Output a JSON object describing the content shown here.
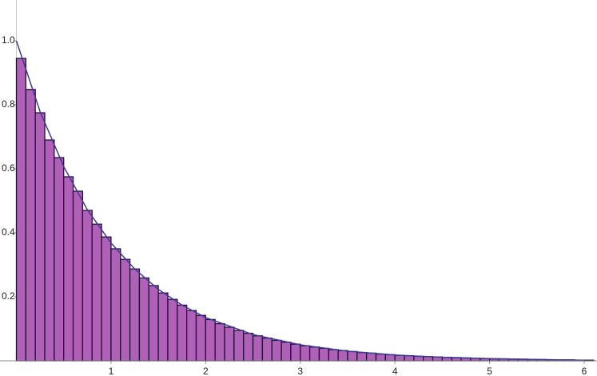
{
  "chart_data": {
    "type": "histogram",
    "bins": [
      0,
      0.1,
      0.2,
      0.3,
      0.4,
      0.5,
      0.6,
      0.7,
      0.8,
      0.9,
      1,
      1.1,
      1.2,
      1.3,
      1.4,
      1.5,
      1.6,
      1.7,
      1.8,
      1.9,
      2,
      2.1,
      2.2,
      2.3,
      2.4,
      2.5,
      2.6,
      2.7,
      2.8,
      2.9,
      3,
      3.1,
      3.2,
      3.3,
      3.4,
      3.5,
      3.6,
      3.7,
      3.8,
      3.9,
      4,
      4.1,
      4.2,
      4.3,
      4.4,
      4.5,
      4.6,
      4.7,
      4.8,
      4.9,
      5,
      5.1,
      5.2,
      5.3,
      5.4,
      5.5,
      5.6,
      5.7,
      5.8,
      5.9,
      6,
      6.1
    ],
    "values": [
      0.945,
      0.848,
      0.775,
      0.69,
      0.635,
      0.575,
      0.53,
      0.47,
      0.427,
      0.387,
      0.35,
      0.317,
      0.287,
      0.259,
      0.235,
      0.212,
      0.192,
      0.174,
      0.157,
      0.142,
      0.129,
      0.116,
      0.105,
      0.095,
      0.086,
      0.078,
      0.071,
      0.064,
      0.058,
      0.052,
      0.047,
      0.043,
      0.039,
      0.035,
      0.032,
      0.029,
      0.026,
      0.024,
      0.021,
      0.019,
      0.017,
      0.016,
      0.014,
      0.013,
      0.012,
      0.011,
      0.01,
      0.009,
      0.008,
      0.007,
      0.006,
      0.006,
      0.005,
      0.005,
      0.004,
      0.004,
      0.003,
      0.003,
      0.003,
      0.002,
      0.002
    ],
    "color": "#b160b8",
    "edge_color": "#1c1233",
    "curve": {
      "color": "#3d3a9a",
      "x": [
        0,
        0.25,
        0.5,
        0.75,
        1,
        1.25,
        1.5,
        1.75,
        2,
        2.5,
        3,
        3.5,
        4,
        4.5,
        5,
        5.5,
        6
      ],
      "y": [
        1,
        0.779,
        0.607,
        0.472,
        0.368,
        0.287,
        0.223,
        0.174,
        0.135,
        0.082,
        0.05,
        0.03,
        0.018,
        0.011,
        0.007,
        0.004,
        0.002
      ]
    },
    "xlim": [
      0,
      6
    ],
    "xticks": [
      1,
      2,
      3,
      4,
      5,
      6
    ],
    "ylim": [
      0,
      1
    ],
    "yticks": [
      0.2,
      0.4,
      0.6,
      0.8,
      {
        "value": 1,
        "label": "1.0"
      }
    ]
  }
}
